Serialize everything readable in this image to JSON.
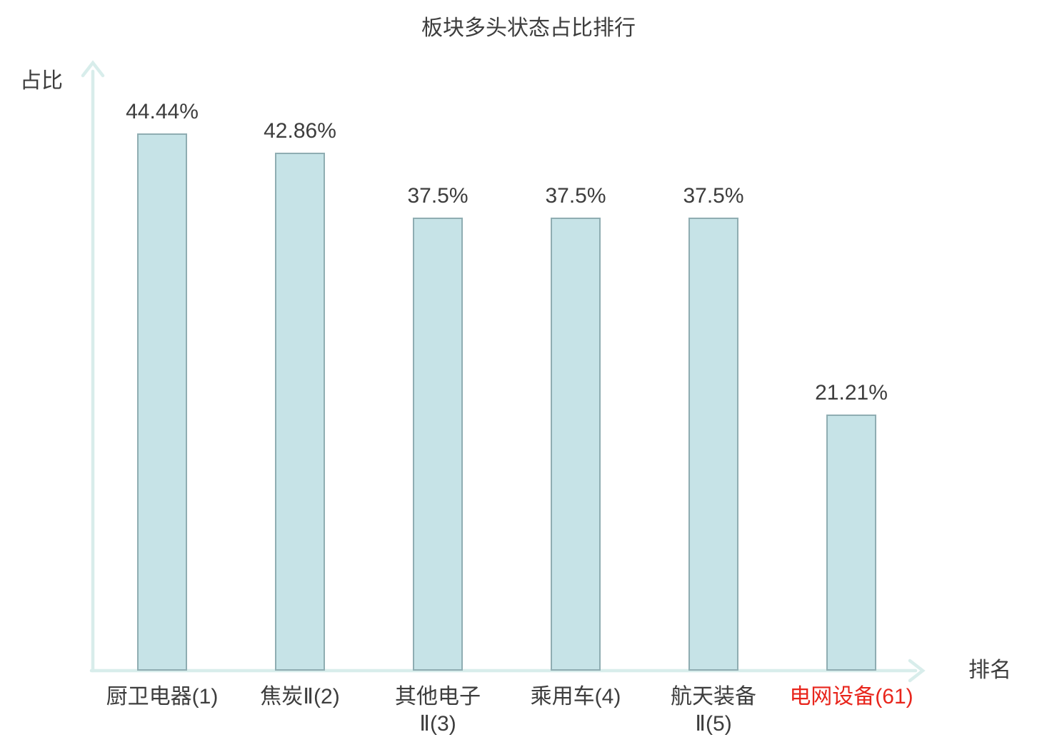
{
  "title": "板块多头状态占比排行",
  "axes": {
    "y_label": "占比",
    "x_label": "排名"
  },
  "colors": {
    "bar_fill": "#c6e3e7",
    "bar_border": "#8fadb2",
    "axis": "#d8edeb",
    "text": "#3d3d3d",
    "highlight": "#e8251c"
  },
  "chart_data": {
    "type": "bar",
    "title": "板块多头状态占比排行",
    "xlabel": "排名",
    "ylabel": "占比",
    "categories": [
      "厨卫电器(1)",
      "焦炭Ⅱ(2)",
      "其他电子Ⅱ(3)",
      "乘用车(4)",
      "航天装备Ⅱ(5)",
      "电网设备(61)"
    ],
    "category_lines": [
      [
        "厨卫电器(1)"
      ],
      [
        "焦炭Ⅱ(2)"
      ],
      [
        "其他电子",
        "Ⅱ(3)"
      ],
      [
        "乘用车(4)"
      ],
      [
        "航天装备",
        "Ⅱ(5)"
      ],
      [
        "电网设备(61)"
      ]
    ],
    "values": [
      44.44,
      42.86,
      37.5,
      37.5,
      37.5,
      21.21
    ],
    "value_labels": [
      "44.44%",
      "42.86%",
      "37.5%",
      "37.5%",
      "37.5%",
      "21.21%"
    ],
    "highlighted_index": 5,
    "ylim": [
      0,
      50
    ],
    "grid": false,
    "legend": null
  }
}
